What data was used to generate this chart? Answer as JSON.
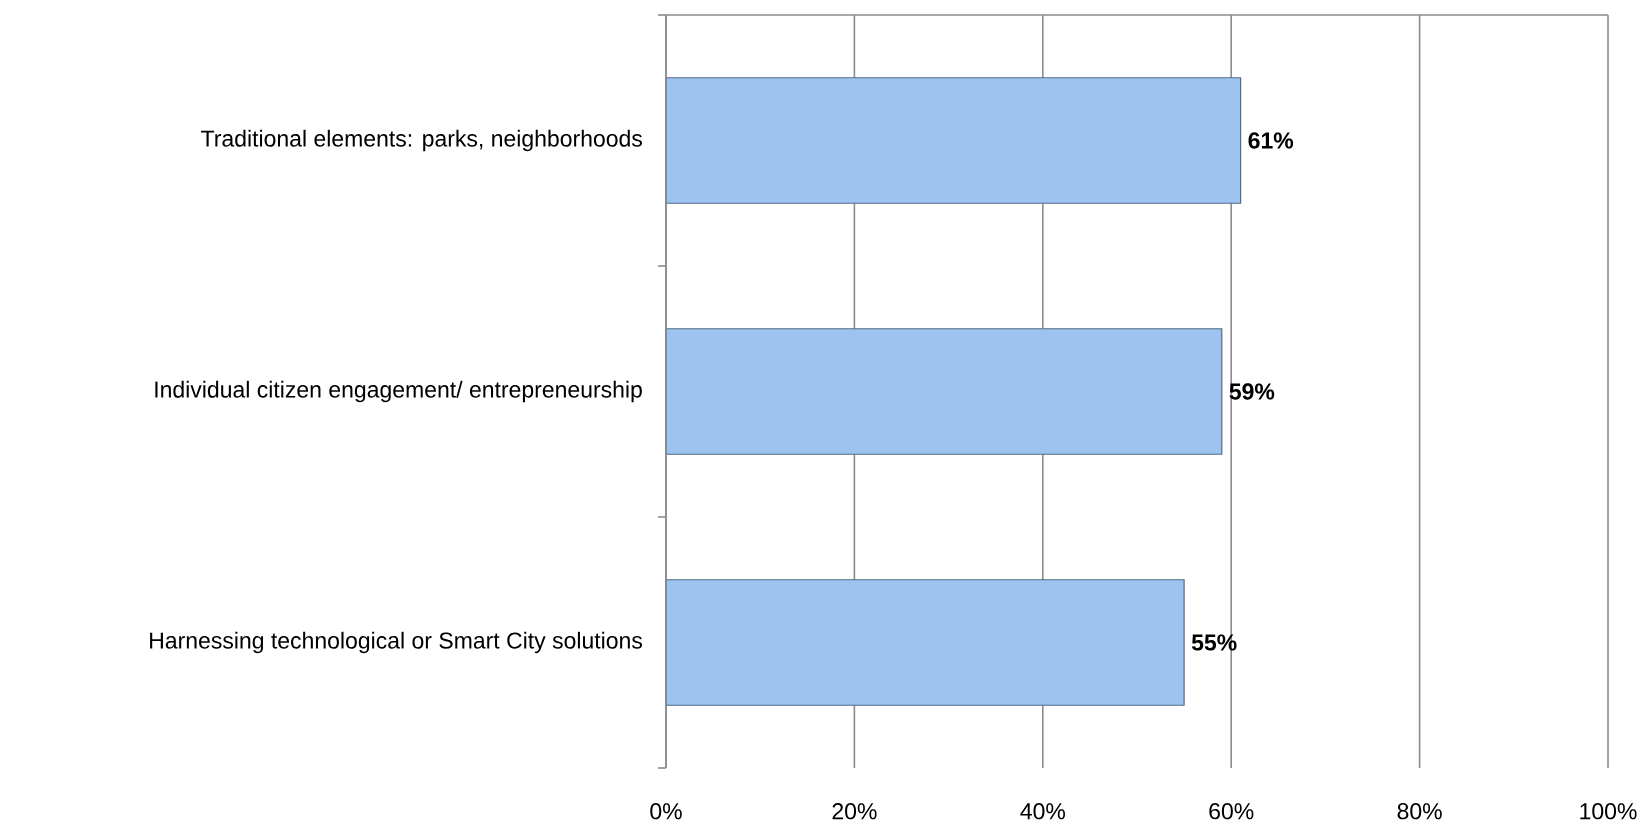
{
  "chart_data": {
    "type": "bar",
    "orientation": "horizontal",
    "categories": [
      "Traditional elements: parks, neighborhoods",
      "Individual citizen engagement/ entrepreneurship",
      "Harnessing technological or Smart City solutions"
    ],
    "values": [
      61,
      59,
      55
    ],
    "value_labels": [
      "61%",
      "59%",
      "55%"
    ],
    "color": "#9dc3f0",
    "xlim": [
      0,
      100
    ],
    "xticks": [
      {
        "value": 0,
        "label": "0%"
      },
      {
        "value": 20,
        "label": "20%"
      },
      {
        "value": 40,
        "label": "40%"
      },
      {
        "value": 60,
        "label": "60%"
      },
      {
        "value": 80,
        "label": "80%"
      },
      {
        "value": 100,
        "label": "100%"
      }
    ],
    "grid": "x"
  }
}
